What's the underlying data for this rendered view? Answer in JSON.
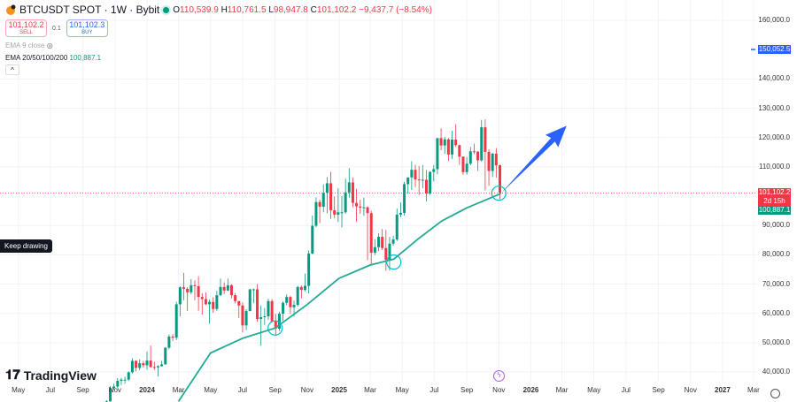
{
  "header": {
    "symbol": "BTCUSDT SPOT · 1W · Bybit",
    "o_label": "O",
    "o": "110,539.9",
    "h_label": "H",
    "h": "110,761.5",
    "l_label": "L",
    "l": "98,947.8",
    "c_label": "C",
    "c": "101,102.2",
    "change": "−9,437.7 (−8.54%)"
  },
  "trade": {
    "sell_price": "101,102.2",
    "sell_label": "SELL",
    "qty": "0.1",
    "buy_price": "101,102.3",
    "buy_label": "BUY"
  },
  "indicators": [
    {
      "label": "EMA 9 close"
    },
    {
      "label": "EMA 20/50/100/200",
      "value": "100,887.1"
    }
  ],
  "tooltip": "Keep drawing",
  "logo": "TradingView",
  "colors": {
    "up": "#089981",
    "down": "#f23645",
    "ema": "#22ab94",
    "drawing": "#2962ff",
    "circles": "#00bcd4"
  },
  "chart_data": {
    "type": "candlestick",
    "interval": "1W",
    "candles_start": "2023-10-16",
    "candles": [
      [
        28500,
        30400,
        26900,
        30000
      ],
      [
        30000,
        35200,
        29800,
        34500
      ],
      [
        34500,
        36000,
        34000,
        35000
      ],
      [
        35000,
        37900,
        34500,
        37000
      ],
      [
        37000,
        38000,
        35600,
        37400
      ],
      [
        37400,
        38400,
        36000,
        37400
      ],
      [
        37400,
        40200,
        37000,
        39900
      ],
      [
        39900,
        44700,
        39500,
        43800
      ],
      [
        43800,
        44000,
        40200,
        41400
      ],
      [
        41400,
        44300,
        40600,
        43000
      ],
      [
        43000,
        43800,
        41500,
        42300
      ],
      [
        42300,
        47000,
        40800,
        43900
      ],
      [
        43900,
        49000,
        41500,
        41700
      ],
      [
        41700,
        43500,
        40700,
        41600
      ],
      [
        41600,
        42300,
        38500,
        42000
      ],
      [
        42000,
        43800,
        41800,
        42600
      ],
      [
        42600,
        48500,
        42500,
        48300
      ],
      [
        48300,
        52800,
        47800,
        52100
      ],
      [
        52100,
        52900,
        50600,
        51700
      ],
      [
        51700,
        64000,
        50900,
        63100
      ],
      [
        63100,
        69200,
        59000,
        68900
      ],
      [
        68900,
        73800,
        64500,
        68400
      ],
      [
        68400,
        68900,
        60800,
        67200
      ],
      [
        67200,
        71700,
        66500,
        69600
      ],
      [
        69600,
        71300,
        64500,
        69300
      ],
      [
        69300,
        72700,
        60900,
        65600
      ],
      [
        65600,
        66900,
        59600,
        64900
      ],
      [
        64900,
        67200,
        62800,
        63100
      ],
      [
        63100,
        64700,
        56500,
        63900
      ],
      [
        63900,
        65500,
        60200,
        61500
      ],
      [
        61500,
        67700,
        60800,
        66200
      ],
      [
        66200,
        71900,
        66000,
        69000
      ],
      [
        69000,
        70600,
        66600,
        67800
      ],
      [
        67800,
        71900,
        67600,
        69600
      ],
      [
        69600,
        70000,
        65100,
        66200
      ],
      [
        66200,
        66900,
        63400,
        64200
      ],
      [
        64200,
        63900,
        58400,
        62700
      ],
      [
        62700,
        63800,
        53500,
        55900
      ],
      [
        55900,
        61400,
        54300,
        60800
      ],
      [
        60800,
        68400,
        60700,
        68200
      ],
      [
        68200,
        68500,
        63500,
        68200
      ],
      [
        68200,
        70000,
        57200,
        58100
      ],
      [
        58100,
        62700,
        49000,
        58700
      ],
      [
        58700,
        61800,
        56100,
        59000
      ],
      [
        59000,
        65000,
        57800,
        64200
      ],
      [
        64200,
        64900,
        57200,
        57300
      ],
      [
        57300,
        59800,
        52500,
        54800
      ],
      [
        54800,
        60600,
        54000,
        59900
      ],
      [
        59900,
        64100,
        57500,
        63600
      ],
      [
        63600,
        66500,
        62700,
        65600
      ],
      [
        65600,
        66000,
        59800,
        62100
      ],
      [
        62100,
        64400,
        58900,
        62900
      ],
      [
        62900,
        69400,
        62300,
        69000
      ],
      [
        69000,
        69500,
        65100,
        68000
      ],
      [
        68000,
        73600,
        67500,
        69400
      ],
      [
        69400,
        81500,
        66800,
        80400
      ],
      [
        80400,
        93400,
        80200,
        89900
      ],
      [
        89900,
        99600,
        89400,
        98000
      ],
      [
        98000,
        98800,
        90800,
        96400
      ],
      [
        96400,
        104000,
        94500,
        101100
      ],
      [
        101100,
        106500,
        94200,
        104400
      ],
      [
        104400,
        108300,
        92200,
        95200
      ],
      [
        95200,
        99900,
        92500,
        93700
      ],
      [
        93700,
        102700,
        91200,
        94500
      ],
      [
        94500,
        100000,
        89300,
        94500
      ],
      [
        94500,
        106000,
        94000,
        101300
      ],
      [
        101300,
        109600,
        99500,
        104700
      ],
      [
        104700,
        106400,
        96200,
        97700
      ],
      [
        97700,
        102500,
        91200,
        96500
      ],
      [
        96500,
        98800,
        94000,
        96100
      ],
      [
        96100,
        99500,
        93300,
        96200
      ],
      [
        96200,
        96500,
        78200,
        94200
      ],
      [
        94200,
        95000,
        76600,
        80700
      ],
      [
        80700,
        85300,
        79900,
        82600
      ],
      [
        82600,
        87400,
        81200,
        86100
      ],
      [
        86100,
        88800,
        81600,
        82300
      ],
      [
        82300,
        88500,
        74500,
        78300
      ],
      [
        78300,
        86100,
        74600,
        83800
      ],
      [
        83800,
        86500,
        83100,
        85200
      ],
      [
        85200,
        95800,
        84700,
        93700
      ],
      [
        93700,
        97900,
        92800,
        94300
      ],
      [
        94300,
        104900,
        93400,
        104100
      ],
      [
        104100,
        105800,
        100800,
        106400
      ],
      [
        106400,
        111900,
        102100,
        109000
      ],
      [
        109000,
        110700,
        103100,
        105700
      ],
      [
        105700,
        110300,
        100400,
        105600
      ],
      [
        105600,
        110600,
        102700,
        105600
      ],
      [
        105600,
        108900,
        98200,
        100900
      ],
      [
        100900,
        108500,
        100400,
        108300
      ],
      [
        108300,
        110600,
        105100,
        109200
      ],
      [
        109200,
        119500,
        107500,
        119800
      ],
      [
        119800,
        123200,
        115700,
        117300
      ],
      [
        117300,
        120200,
        114500,
        119400
      ],
      [
        119400,
        119800,
        112000,
        114200
      ],
      [
        114200,
        122300,
        112700,
        119300
      ],
      [
        119300,
        124500,
        116800,
        117400
      ],
      [
        117400,
        117600,
        110700,
        113500
      ],
      [
        113500,
        113500,
        107300,
        108200
      ],
      [
        108200,
        113400,
        107300,
        111100
      ],
      [
        111100,
        116800,
        110600,
        115300
      ],
      [
        115300,
        117900,
        114400,
        115200
      ],
      [
        115200,
        115300,
        108600,
        112200
      ],
      [
        112200,
        126000,
        111800,
        123500
      ],
      [
        123500,
        126200,
        102000,
        115100
      ],
      [
        115100,
        116000,
        103500,
        108600
      ],
      [
        108600,
        114800,
        106500,
        114500
      ],
      [
        114500,
        116400,
        106300,
        110500
      ],
      [
        110540,
        110762,
        98948,
        101102
      ]
    ],
    "ema": [
      [
        "2024-03-01",
        30000
      ],
      [
        "2024-05-01",
        46500
      ],
      [
        "2024-07-01",
        51500
      ],
      [
        "2024-09-01",
        55000
      ],
      [
        "2024-11-01",
        63000
      ],
      [
        "2025-01-01",
        72000
      ],
      [
        "2025-03-01",
        76500
      ],
      [
        "2025-04-15",
        78500
      ],
      [
        "2025-06-01",
        85500
      ],
      [
        "2025-07-15",
        91500
      ],
      [
        "2025-09-01",
        96000
      ],
      [
        "2025-10-15",
        99300
      ],
      [
        "2025-11-05",
        100887
      ]
    ],
    "circles": [
      {
        "date": "2024-09-01",
        "price": 55000
      },
      {
        "date": "2025-04-15",
        "price": 77500
      },
      {
        "date": "2025-11-01",
        "price": 101000
      }
    ],
    "arrow": {
      "from": {
        "date": "2025-11-05",
        "price": 101000
      },
      "to": {
        "date": "2026-03-10",
        "price": 124000
      }
    },
    "last_price": {
      "value": 101102.2,
      "label": "101,102.2",
      "countdown": "2d 15h"
    },
    "ema_label": {
      "value": 100887.1,
      "label": "100,887.1"
    },
    "target_label": {
      "value": 150052.5,
      "label": "150,052.5"
    },
    "y_ticks": [
      {
        "v": 160000,
        "label": "160,000.0"
      },
      {
        "v": 140000,
        "label": "140,000.0"
      },
      {
        "v": 130000,
        "label": "130,000.0"
      },
      {
        "v": 120000,
        "label": "120,000.0"
      },
      {
        "v": 110000,
        "label": "110,000.0"
      },
      {
        "v": 90000,
        "label": "90,000.0"
      },
      {
        "v": 80000,
        "label": "80,000.0"
      },
      {
        "v": 70000,
        "label": "70,000.0"
      },
      {
        "v": 60000,
        "label": "60,000.0"
      },
      {
        "v": 50000,
        "label": "50,000.0"
      },
      {
        "v": 40000,
        "label": "40,000.0"
      }
    ],
    "x_ticks": [
      {
        "d": "2023-05-01",
        "label": "May"
      },
      {
        "d": "2023-07-01",
        "label": "Jul"
      },
      {
        "d": "2023-09-01",
        "label": "Sep"
      },
      {
        "d": "2023-11-01",
        "label": "Nov"
      },
      {
        "d": "2024-01-01",
        "label": "2024"
      },
      {
        "d": "2024-03-01",
        "label": "Mar"
      },
      {
        "d": "2024-05-01",
        "label": "May"
      },
      {
        "d": "2024-07-01",
        "label": "Jul"
      },
      {
        "d": "2024-09-01",
        "label": "Sep"
      },
      {
        "d": "2024-11-01",
        "label": "Nov"
      },
      {
        "d": "2025-01-01",
        "label": "2025"
      },
      {
        "d": "2025-03-01",
        "label": "Mar"
      },
      {
        "d": "2025-05-01",
        "label": "May"
      },
      {
        "d": "2025-07-01",
        "label": "Jul"
      },
      {
        "d": "2025-09-01",
        "label": "Sep"
      },
      {
        "d": "2025-11-01",
        "label": "Nov"
      },
      {
        "d": "2026-01-01",
        "label": "2026"
      },
      {
        "d": "2026-03-01",
        "label": "Mar"
      },
      {
        "d": "2026-05-01",
        "label": "May"
      },
      {
        "d": "2026-07-01",
        "label": "Jul"
      },
      {
        "d": "2026-09-01",
        "label": "Sep"
      },
      {
        "d": "2026-11-01",
        "label": "Nov"
      },
      {
        "d": "2027-01-01",
        "label": "2027"
      },
      {
        "d": "2027-03-01",
        "label": "Mar"
      }
    ],
    "grid": true
  }
}
